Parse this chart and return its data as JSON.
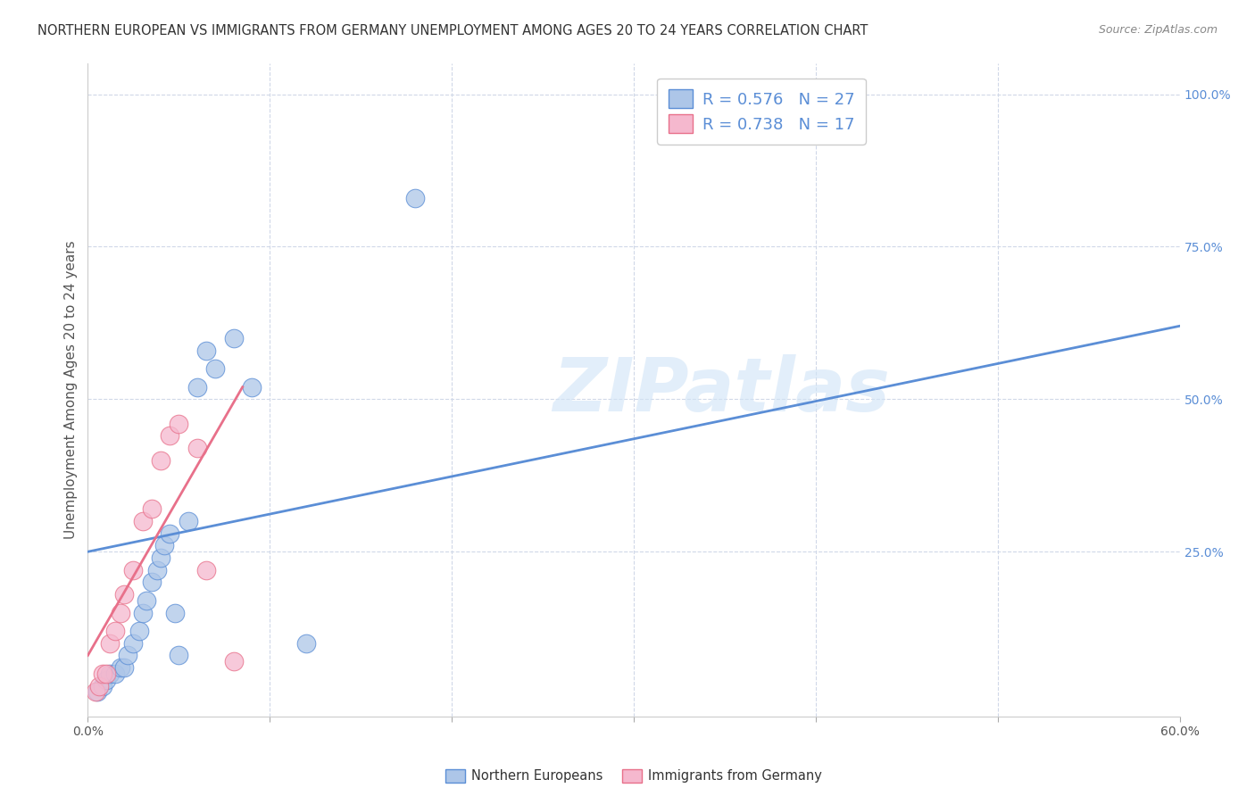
{
  "title": "NORTHERN EUROPEAN VS IMMIGRANTS FROM GERMANY UNEMPLOYMENT AMONG AGES 20 TO 24 YEARS CORRELATION CHART",
  "source": "Source: ZipAtlas.com",
  "ylabel": "Unemployment Among Ages 20 to 24 years",
  "xlim": [
    0.0,
    0.6
  ],
  "ylim": [
    -0.02,
    1.05
  ],
  "xticks": [
    0.0,
    0.1,
    0.2,
    0.3,
    0.4,
    0.5,
    0.6
  ],
  "xtick_labels": [
    "0.0%",
    "",
    "",
    "",
    "",
    "",
    "60.0%"
  ],
  "yticks_right": [
    0.0,
    0.25,
    0.5,
    0.75,
    1.0
  ],
  "ytick_labels_right": [
    "",
    "25.0%",
    "50.0%",
    "75.0%",
    "100.0%"
  ],
  "blue_R": 0.576,
  "blue_N": 27,
  "pink_R": 0.738,
  "pink_N": 17,
  "blue_color": "#adc6e8",
  "pink_color": "#f5b8ce",
  "blue_line_color": "#5b8ed6",
  "pink_line_color": "#e8708a",
  "watermark": "ZIPatlas",
  "blue_scatter_x": [
    0.005,
    0.008,
    0.01,
    0.012,
    0.015,
    0.018,
    0.02,
    0.022,
    0.025,
    0.028,
    0.03,
    0.032,
    0.035,
    0.038,
    0.04,
    0.042,
    0.045,
    0.048,
    0.05,
    0.055,
    0.06,
    0.065,
    0.07,
    0.08,
    0.09,
    0.12,
    0.18
  ],
  "blue_scatter_y": [
    0.02,
    0.03,
    0.04,
    0.05,
    0.05,
    0.06,
    0.06,
    0.08,
    0.1,
    0.12,
    0.15,
    0.17,
    0.2,
    0.22,
    0.24,
    0.26,
    0.28,
    0.15,
    0.08,
    0.3,
    0.52,
    0.58,
    0.55,
    0.6,
    0.52,
    0.1,
    0.83
  ],
  "pink_scatter_x": [
    0.004,
    0.006,
    0.008,
    0.01,
    0.012,
    0.015,
    0.018,
    0.02,
    0.025,
    0.03,
    0.035,
    0.04,
    0.045,
    0.05,
    0.06,
    0.065,
    0.08
  ],
  "pink_scatter_y": [
    0.02,
    0.03,
    0.05,
    0.05,
    0.1,
    0.12,
    0.15,
    0.18,
    0.22,
    0.3,
    0.32,
    0.4,
    0.44,
    0.46,
    0.42,
    0.22,
    0.07
  ],
  "blue_line_x": [
    0.0,
    0.6
  ],
  "blue_line_y": [
    0.25,
    0.62
  ],
  "pink_line_x": [
    0.0,
    0.085
  ],
  "pink_line_y": [
    0.08,
    0.52
  ],
  "background_color": "#ffffff",
  "grid_color": "#d0d8e8",
  "title_fontsize": 10.5,
  "axis_label_fontsize": 11,
  "tick_fontsize": 10,
  "legend_fontsize": 13
}
